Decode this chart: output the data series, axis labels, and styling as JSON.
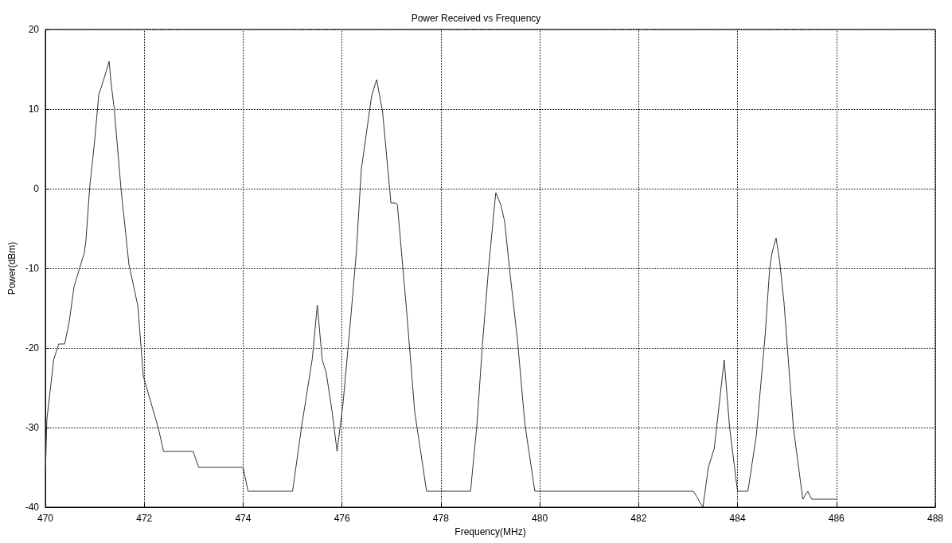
{
  "chart_data": {
    "type": "line",
    "title": "Power Received vs Frequency",
    "xlabel": "Frequency(MHz)",
    "ylabel": "Power(dBm)",
    "xlim": [
      470,
      488
    ],
    "xticks": [
      470,
      472,
      474,
      476,
      478,
      480,
      482,
      484,
      486,
      488
    ],
    "ylim": [
      -40,
      20
    ],
    "yticks": [
      -40,
      -30,
      -20,
      -10,
      0,
      10,
      20
    ],
    "grid": true,
    "marker": "none",
    "line_style": "solid",
    "series": [
      {
        "color": "#333333",
        "x": [
          470.0,
          470.03,
          470.17,
          470.27,
          470.39,
          470.48,
          470.58,
          470.79,
          470.82,
          470.9,
          470.99,
          471.08,
          471.19,
          471.29,
          471.33,
          471.39,
          471.53,
          471.69,
          471.87,
          471.98,
          472.29,
          472.39,
          472.99,
          473.1,
          474.0,
          474.1,
          475.0,
          475.18,
          475.4,
          475.5,
          475.6,
          475.68,
          475.8,
          475.9,
          476.02,
          476.18,
          476.29,
          476.39,
          476.6,
          476.7,
          476.82,
          476.99,
          477.09,
          477.12,
          477.31,
          477.47,
          477.71,
          478.6,
          478.73,
          478.84,
          478.97,
          479.11,
          479.21,
          479.29,
          479.38,
          479.55,
          479.7,
          479.9,
          483.11,
          483.3,
          483.41,
          483.53,
          483.73,
          483.84,
          484.0,
          484.21,
          484.38,
          484.56,
          484.65,
          484.7,
          484.78,
          484.85,
          484.94,
          485.13,
          485.32,
          485.42,
          485.5,
          486.0
        ],
        "values": [
          -36,
          -29,
          -21.4,
          -19.5,
          -19.5,
          -16.8,
          -12.3,
          -8,
          -6.5,
          0.4,
          5.6,
          11.8,
          13.9,
          16,
          13.2,
          10.2,
          0,
          -9.5,
          -14.7,
          -23.5,
          -30.2,
          -33,
          -33,
          -35,
          -35,
          -38,
          -38,
          -30,
          -21.3,
          -14.6,
          -21.5,
          -23.1,
          -28,
          -33,
          -27,
          -16,
          -8,
          2.4,
          11.7,
          13.7,
          9.7,
          -1.8,
          -1.8,
          -2,
          -15.6,
          -28,
          -38,
          -38,
          -29.6,
          -19.6,
          -9.6,
          -0.5,
          -2,
          -4.1,
          -9.6,
          -19.1,
          -29.6,
          -38,
          -38,
          -40,
          -35,
          -32.6,
          -21.5,
          -30,
          -38,
          -38,
          -31,
          -18.3,
          -10,
          -8,
          -6.2,
          -9,
          -14.3,
          -30,
          -39,
          -38,
          -39,
          -39
        ]
      }
    ]
  }
}
